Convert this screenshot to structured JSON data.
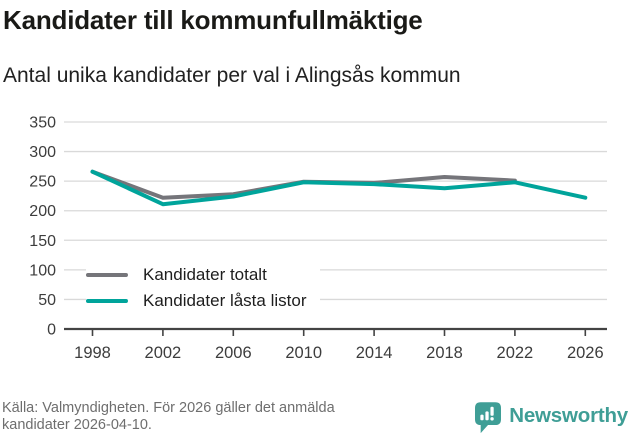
{
  "chart_data": {
    "type": "line",
    "title": "Kandidater till kommunfullmäktige",
    "subtitle": "Antal unika kandidater per val i Alingsås kommun",
    "x": [
      1998,
      2002,
      2006,
      2010,
      2014,
      2018,
      2022,
      2026
    ],
    "xticks": [
      "1998",
      "2002",
      "2006",
      "2010",
      "2014",
      "2018",
      "2022",
      "2026"
    ],
    "yticks": [
      0,
      50,
      100,
      150,
      200,
      250,
      300,
      350
    ],
    "ylim": [
      0,
      350
    ],
    "xlabel": "",
    "ylabel": "",
    "grid": true,
    "legend_position": "inside bottom-left",
    "series": [
      {
        "name": "Kandidater totalt",
        "color": "#75757a",
        "values": [
          266,
          222,
          228,
          249,
          247,
          257,
          251,
          null
        ]
      },
      {
        "name": "Kandidater låsta listor",
        "color": "#00a49b",
        "values": [
          266,
          211,
          224,
          248,
          245,
          238,
          248,
          222
        ]
      }
    ]
  },
  "footer": {
    "source": "Källa: Valmyndigheten. För 2026 gäller det anmälda kandidater 2026-04-10.",
    "brand": "Newsworthy"
  },
  "colors": {
    "axis": "#434343",
    "grid": "#d9d9d9",
    "tick_label": "#3d3d3d",
    "brand_teal": "#3f9e96"
  }
}
